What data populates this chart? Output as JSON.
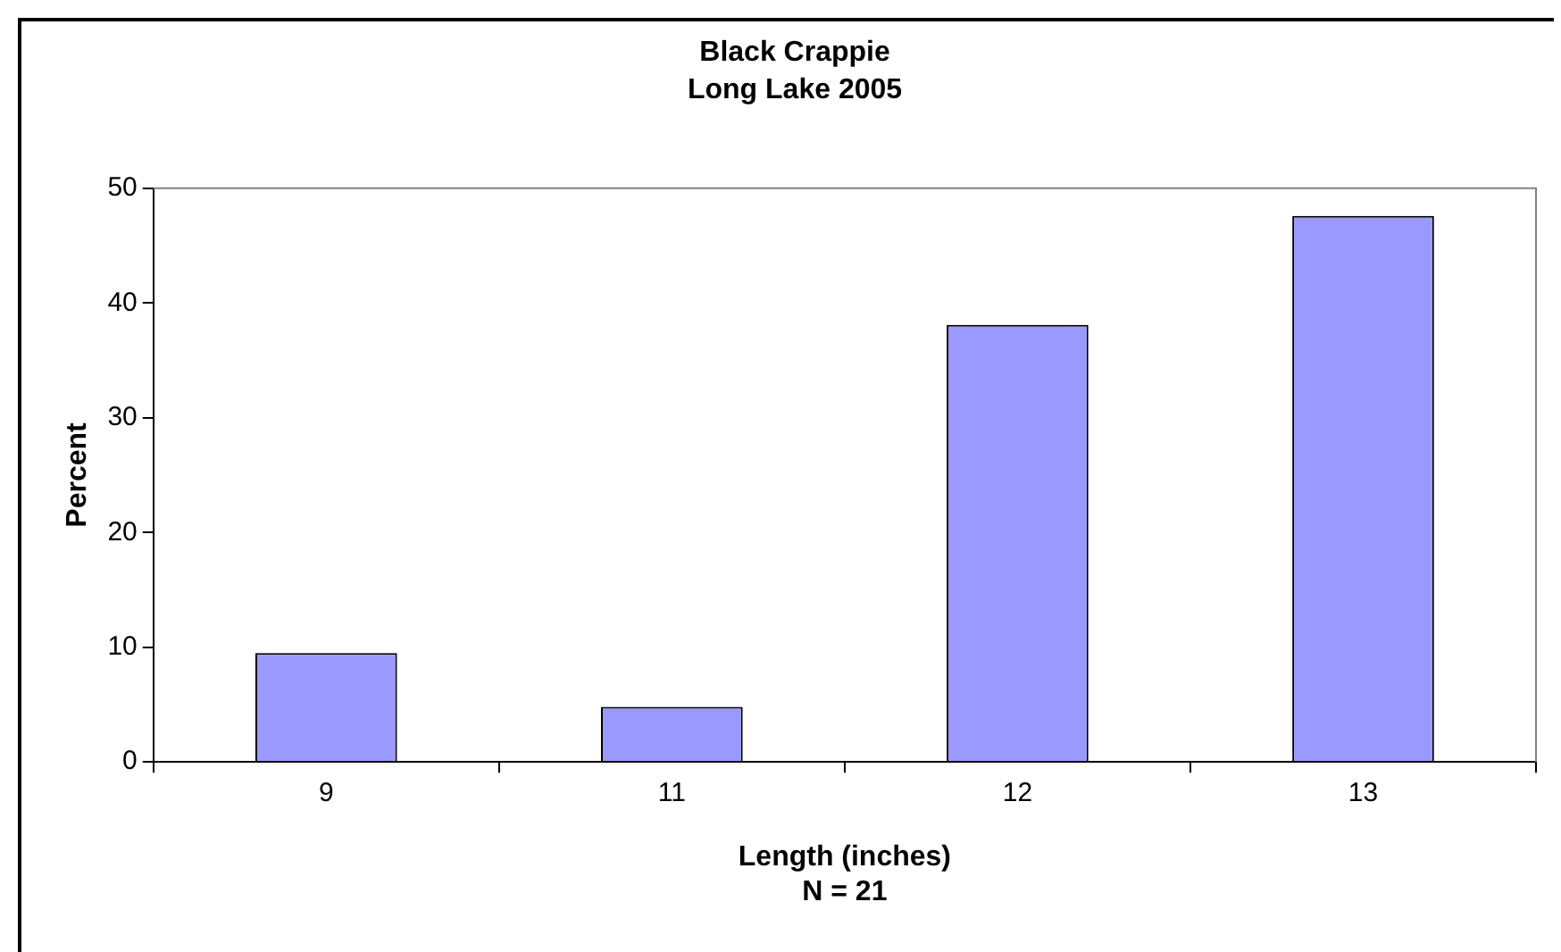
{
  "chart_data": {
    "type": "bar",
    "title": "Black Crappie",
    "subtitle": "Long Lake 2005",
    "xlabel": "Length (inches)",
    "ylabel": "Percent",
    "annotations": [
      "N = 21"
    ],
    "categories": [
      "9",
      "11",
      "12",
      "13"
    ],
    "series": [
      {
        "color": "#9999ff",
        "values": [
          9.5,
          4.8,
          38.1,
          47.6
        ]
      }
    ],
    "ylim": [
      0,
      50
    ],
    "yticks": [
      0,
      10,
      20,
      30,
      40,
      50
    ],
    "grid": false,
    "legend": false
  }
}
